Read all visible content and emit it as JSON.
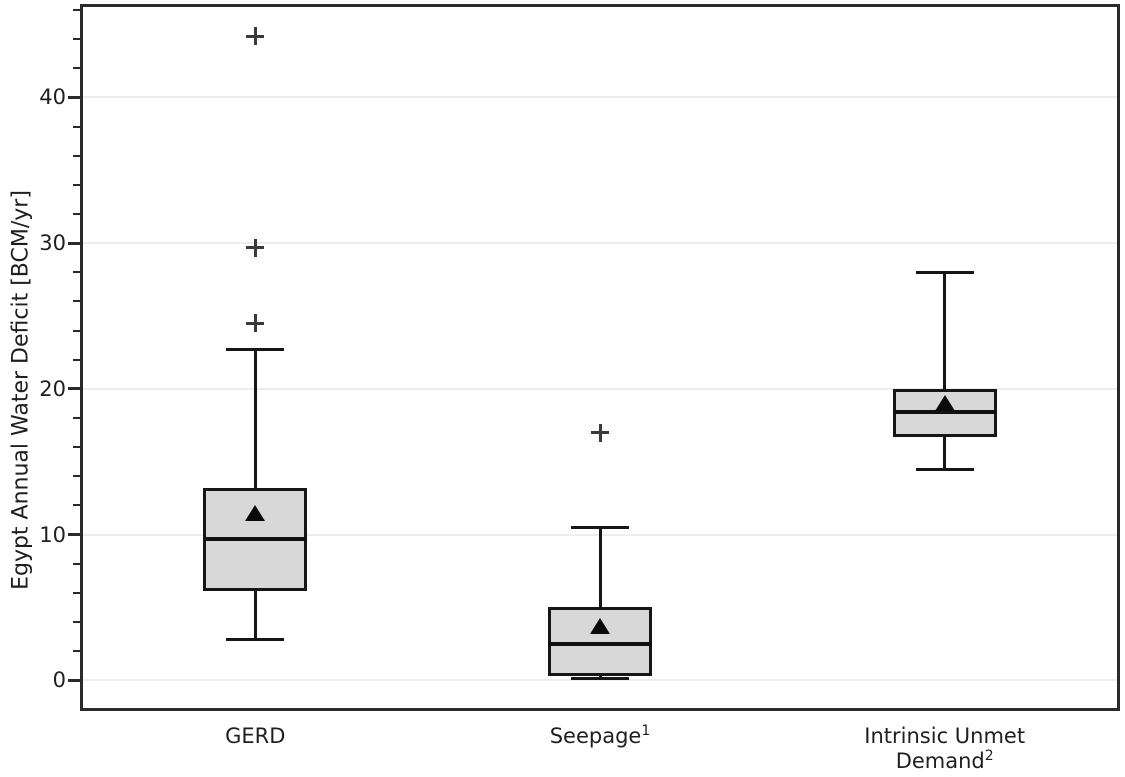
{
  "chart_data": {
    "type": "boxplot",
    "title": "",
    "xlabel": "",
    "ylabel": "Egypt Annual Water Deficit [BCM/yr]",
    "ylim": [
      -1.9,
      46.2
    ],
    "y_major_ticks": [
      0,
      10,
      20,
      30,
      40
    ],
    "y_minor_tick_step": 2,
    "grid": "horizontal-at-major-ticks",
    "legend": "none",
    "categories": [
      {
        "line1": "GERD",
        "sup1": "",
        "line2": "",
        "sup2": ""
      },
      {
        "line1": "Seepage",
        "sup1": "1",
        "line2": "",
        "sup2": ""
      },
      {
        "line1": "Intrinsic Unmet",
        "sup1": "",
        "line2": "Demand",
        "sup2": "2"
      }
    ],
    "series": [
      {
        "name": "GERD",
        "whisker_low": 2.8,
        "q1": 6.1,
        "median": 9.7,
        "mean": 11.5,
        "q3": 13.2,
        "whisker_high": 22.7,
        "outliers": [
          24.5,
          29.7,
          44.2
        ]
      },
      {
        "name": "Seepage",
        "whisker_low": 0.1,
        "q1": 0.3,
        "median": 2.5,
        "mean": 3.7,
        "q3": 5.0,
        "whisker_high": 10.5,
        "outliers": [
          17.0
        ]
      },
      {
        "name": "Intrinsic Unmet Demand",
        "whisker_low": 14.5,
        "q1": 16.7,
        "median": 18.4,
        "mean": 19.0,
        "q3": 20.0,
        "whisker_high": 28.0,
        "outliers": []
      }
    ],
    "marker_legend": {
      "mean_marker": "filled black triangle",
      "outlier_marker": "plus sign"
    },
    "colors": {
      "background": "#ffffff",
      "box_fill": "#d8d8d8",
      "box_edge": "#161616",
      "median_line": "#111111",
      "whisker": "#161616",
      "mean_marker": "#0a0a0a",
      "outlier": "#3a3a3a",
      "gridline": "#ededed",
      "spine": "#2a2a2a",
      "text": "#1f1f1f"
    }
  }
}
